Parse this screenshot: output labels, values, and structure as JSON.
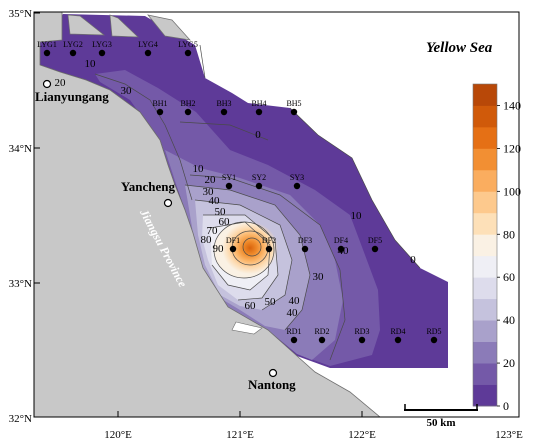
{
  "title": "Yellow Sea",
  "axes": {
    "lat_ticks": [
      "35°N",
      "34°N",
      "33°N",
      "32°N"
    ],
    "lon_ticks": [
      "120°E",
      "121°E",
      "122°E",
      "123°E"
    ]
  },
  "places": [
    {
      "name": "Lianyungang"
    },
    {
      "name": "Yancheng"
    },
    {
      "name": "Nantong"
    }
  ],
  "province_label": "Jiangsu Province",
  "stations": [
    {
      "id": "LYG1"
    },
    {
      "id": "LYG2"
    },
    {
      "id": "LYG3"
    },
    {
      "id": "LYG4"
    },
    {
      "id": "LYG5"
    },
    {
      "id": "BH1"
    },
    {
      "id": "BH2"
    },
    {
      "id": "BH3"
    },
    {
      "id": "BH4"
    },
    {
      "id": "BH5"
    },
    {
      "id": "SY1"
    },
    {
      "id": "SY2"
    },
    {
      "id": "SY3"
    },
    {
      "id": "DF1"
    },
    {
      "id": "DF2"
    },
    {
      "id": "DF3"
    },
    {
      "id": "DF4"
    },
    {
      "id": "DF5"
    },
    {
      "id": "RD1"
    },
    {
      "id": "RD2"
    },
    {
      "id": "RD3"
    },
    {
      "id": "RD4"
    },
    {
      "id": "RD5"
    }
  ],
  "contour_labels": [
    "10",
    "20",
    "30",
    "0",
    "10",
    "20",
    "30",
    "40",
    "50",
    "60",
    "70",
    "80",
    "90",
    "10",
    "40",
    "30",
    "40",
    "60",
    "50",
    "40",
    "0"
  ],
  "colorbar": {
    "ticks": [
      "0",
      "20",
      "40",
      "60",
      "80",
      "100",
      "120",
      "140"
    ],
    "colors": [
      "#5e3a98",
      "#7459a8",
      "#8b7bb8",
      "#a9a1cb",
      "#c5c2dd",
      "#dddcec",
      "#efeff5",
      "#faf1e4",
      "#fde0b8",
      "#fdc98d",
      "#faad5f",
      "#f28f33",
      "#e57015",
      "#d05a0a",
      "#b84808"
    ]
  },
  "scale_bar": {
    "label": "50 km"
  }
}
